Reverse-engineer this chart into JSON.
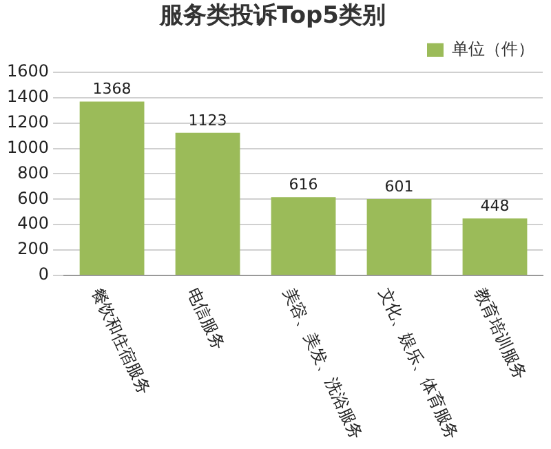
{
  "chart_data": {
    "type": "bar",
    "title": "服务类投诉Top5类别",
    "categories": [
      "餐饮和住宿服务",
      "电信服务",
      "美容、美发、洗浴服务",
      "文化、娱乐、体育服务",
      "教育培训服务"
    ],
    "series": [
      {
        "name": "单位（件）",
        "color": "#9bbb59",
        "values": [
          1368,
          1123,
          616,
          601,
          448
        ]
      }
    ],
    "ylim": [
      0,
      1600
    ],
    "yticks": [
      0,
      200,
      400,
      600,
      800,
      1000,
      1200,
      1400,
      1600
    ],
    "grid": "y",
    "legend": "top right",
    "data_labels": true
  }
}
